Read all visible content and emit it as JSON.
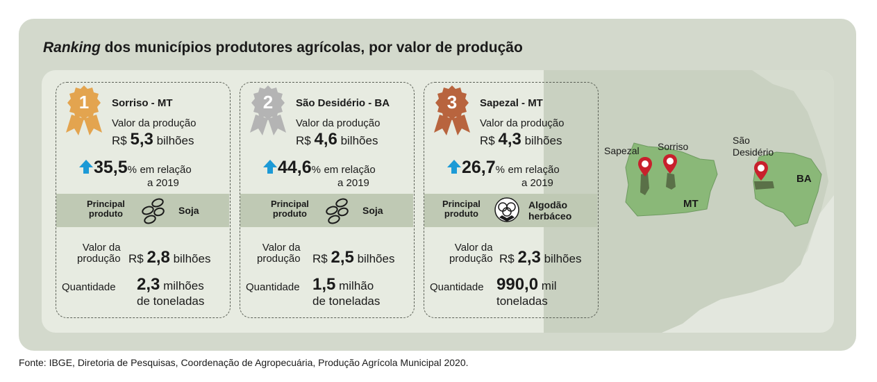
{
  "title": {
    "italic": "Ranking",
    "rest": " dos municípios produtores agrícolas, por valor de produção"
  },
  "cards": [
    {
      "rank": "1",
      "city": "Sorriso - MT",
      "value_label": "Valor da produção",
      "value_currency": "R$",
      "value_number": "5,3",
      "value_unit": "bilhões",
      "growth_pct": "35,5",
      "growth_symbol": "%",
      "growth_text": "em relação",
      "growth_year": "a 2019",
      "product_label": "Principal\nproduto",
      "product_name": "Soja",
      "product_icon": "soybean-icon",
      "prod_value_label": "Valor da\nprodução",
      "prod_value_currency": "R$",
      "prod_value_number": "2,8",
      "prod_value_unit": "bilhões",
      "qty_label": "Quantidade",
      "qty_number": "2,3",
      "qty_unit": "milhões",
      "qty_unit2": "de toneladas"
    },
    {
      "rank": "2",
      "city": "São Desidério - BA",
      "value_label": "Valor da produção",
      "value_currency": "R$",
      "value_number": "4,6",
      "value_unit": "bilhões",
      "growth_pct": "44,6",
      "growth_symbol": "%",
      "growth_text": "em relação",
      "growth_year": "a 2019",
      "product_label": "Principal\nproduto",
      "product_name": "Soja",
      "product_icon": "soybean-icon",
      "prod_value_label": "Valor da\nprodução",
      "prod_value_currency": "R$",
      "prod_value_number": "2,5",
      "prod_value_unit": "bilhões",
      "qty_label": "Quantidade",
      "qty_number": "1,5",
      "qty_unit": "milhão",
      "qty_unit2": "de toneladas"
    },
    {
      "rank": "3",
      "city": "Sapezal - MT",
      "value_label": "Valor da produção",
      "value_currency": "R$",
      "value_number": "4,3",
      "value_unit": "bilhões",
      "growth_pct": "26,7",
      "growth_symbol": "%",
      "growth_text": "em relação",
      "growth_year": "a 2019",
      "product_label": "Principal\nproduto",
      "product_name": "Algodão\nherbáceo",
      "product_icon": "cotton-icon",
      "prod_value_label": "Valor da\nprodução",
      "prod_value_currency": "R$",
      "prod_value_number": "2,3",
      "prod_value_unit": "bilhões",
      "qty_label": "Quantidade",
      "qty_number": "990,0",
      "qty_unit": "mil",
      "qty_unit2": "toneladas"
    }
  ],
  "map": {
    "labels": {
      "sapezal": "Sapezal",
      "sorriso": "Sorriso",
      "sao_desiderio": "São\nDesidério",
      "mt": "MT",
      "ba": "BA"
    }
  },
  "source": "Fonte: IBGE, Diretoria de Pesquisas, Coordenação de Agropecuária, Produção Agrícola Municipal 2020.",
  "colors": {
    "gold": "#e3a44f",
    "silver": "#b4b4b4",
    "bronze": "#b8643e",
    "arrow_blue": "#1c9ad6",
    "state_green": "#8ab878",
    "municipality": "#5a7048",
    "pin_red": "#c8202c"
  }
}
